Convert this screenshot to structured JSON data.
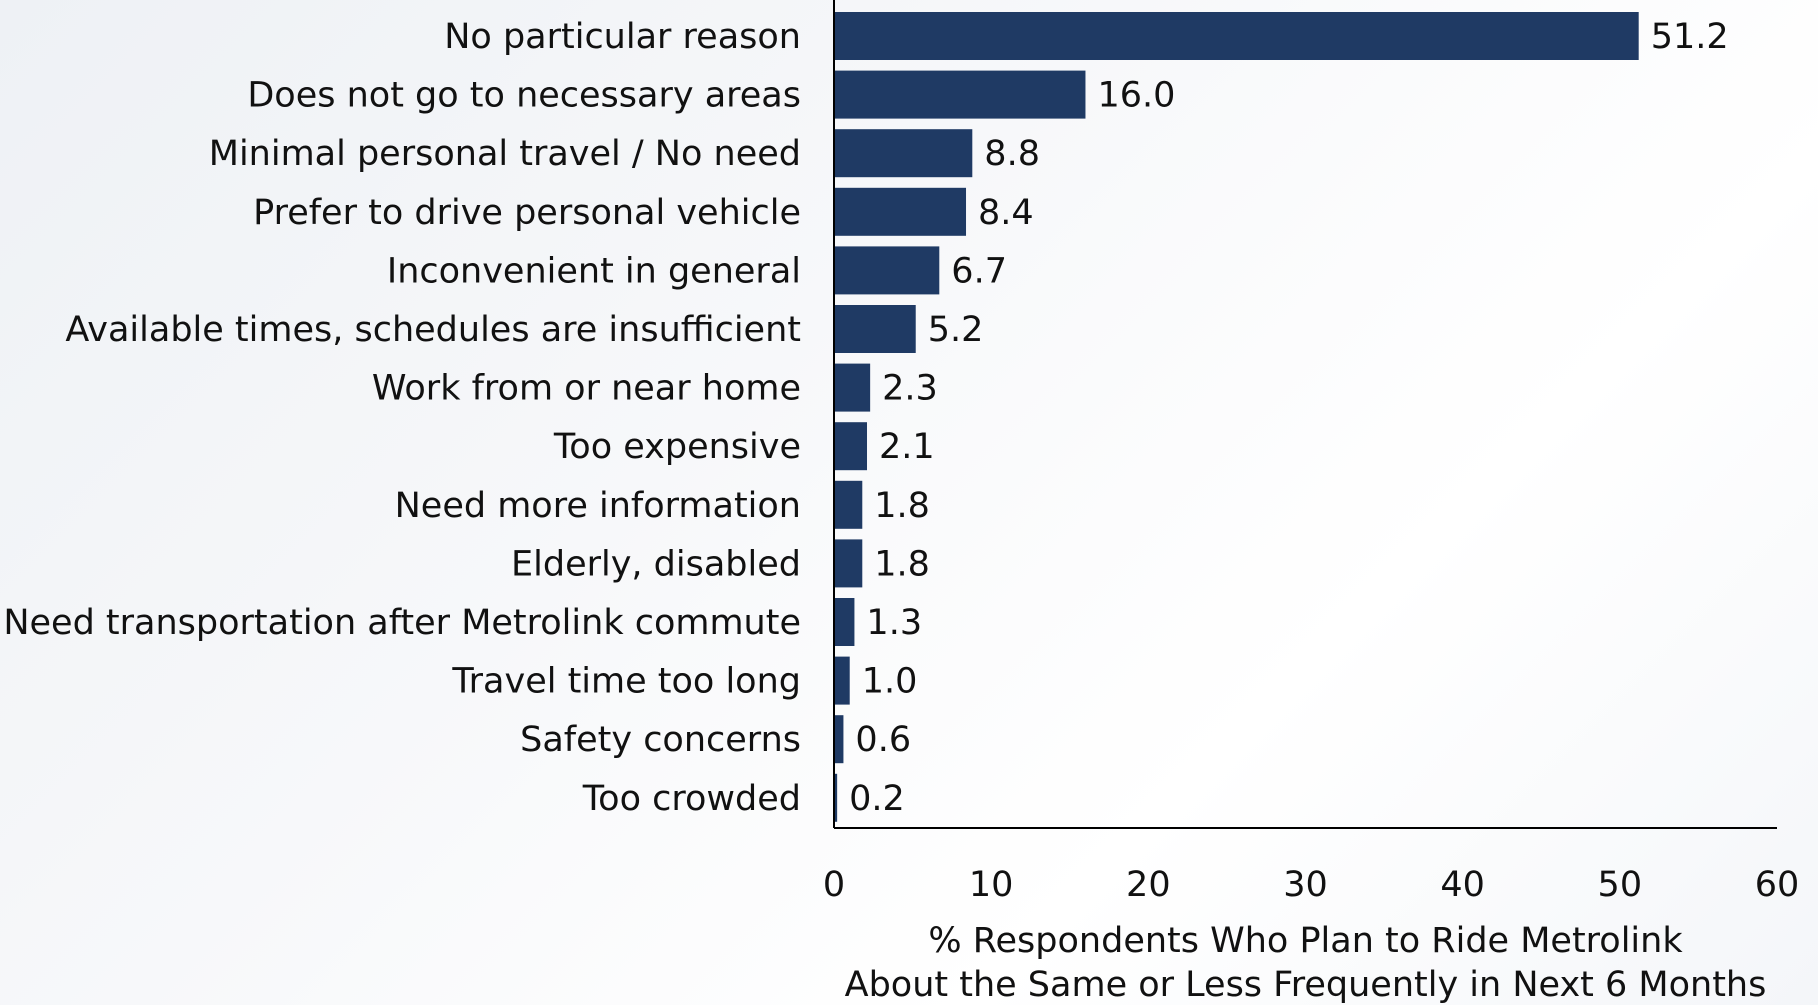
{
  "chart_data": {
    "type": "bar",
    "orientation": "horizontal",
    "categories": [
      "No particular reason",
      "Does not go to necessary areas",
      "Minimal personal travel / No need",
      "Prefer to drive personal vehicle",
      "Inconvenient in general",
      "Available times, schedules are insufficient",
      "Work from or near home",
      "Too expensive",
      "Need more information",
      "Elderly, disabled",
      "Need transportation after Metrolink commute",
      "Travel time too long",
      "Safety concerns",
      "Too crowded"
    ],
    "values": [
      51.2,
      16.0,
      8.8,
      8.4,
      6.7,
      5.2,
      2.3,
      2.1,
      1.8,
      1.8,
      1.3,
      1.0,
      0.6,
      0.2
    ],
    "value_labels": [
      "51.2",
      "16.0",
      "8.8",
      "8.4",
      "6.7",
      "5.2",
      "2.3",
      "2.1",
      "1.8",
      "1.8",
      "1.3",
      "1.0",
      "0.6",
      "0.2"
    ],
    "xlim": [
      0,
      60
    ],
    "xticks": [
      0,
      10,
      20,
      30,
      40,
      50,
      60
    ],
    "xlabel": [
      "% Respondents Who Plan to Ride Metrolink",
      "About the Same or Less Frequently in Next 6 Months"
    ],
    "title": "",
    "grid": false,
    "bar_color": "#1f3a64"
  }
}
